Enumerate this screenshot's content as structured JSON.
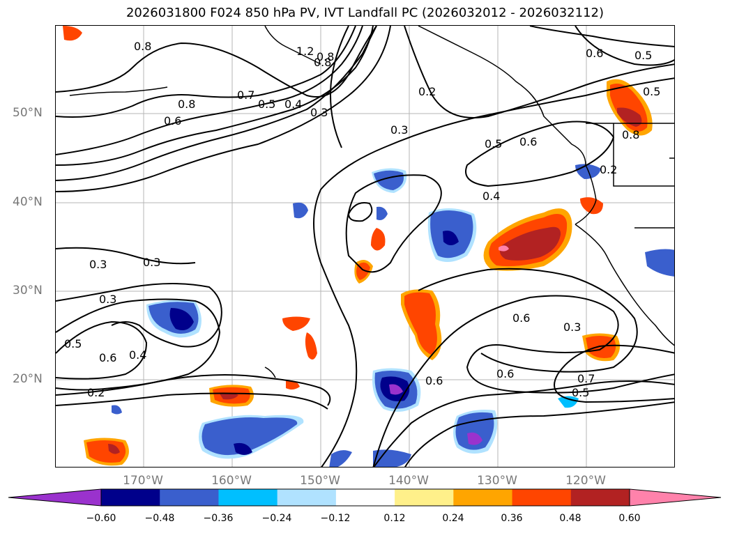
{
  "title": "2026031800 F024 850 hPa PV, IVT Landfall PC (2026032012 - 2026032112)",
  "lat_labels": [
    "50°N",
    "40°N",
    "30°N",
    "20°N"
  ],
  "lon_labels": [
    "170°W",
    "160°W",
    "150°W",
    "140°W",
    "130°W",
    "120°W"
  ],
  "colorbar": {
    "ticks": [
      "−0.60",
      "−0.48",
      "−0.36",
      "−0.24",
      "−0.12",
      "0.12",
      "0.24",
      "0.36",
      "0.48",
      "0.60"
    ],
    "colors": [
      "#9a32cd",
      "#00008b",
      "#3a5fcd",
      "#00bfff",
      "#b0e2ff",
      "#ffffff",
      "#fff08a",
      "#ffa500",
      "#ff4500",
      "#b22222",
      "#ff82ab"
    ]
  },
  "contour_labels": [
    "0.8",
    "0.8",
    "1.2",
    "0.8",
    "0.7",
    "0.8",
    "0.5",
    "0.4",
    "0.3",
    "0.6",
    "0.2",
    "0.3",
    "0.5",
    "0.6",
    "0.6",
    "0.5",
    "0.4",
    "0.3",
    "0.3",
    "0.3",
    "0.5",
    "0.6",
    "0.4",
    "0.2",
    "0.6",
    "0.6",
    "0.3",
    "0.6",
    "0.7",
    "0.5",
    "0.2",
    "0.5",
    "0.8"
  ]
}
